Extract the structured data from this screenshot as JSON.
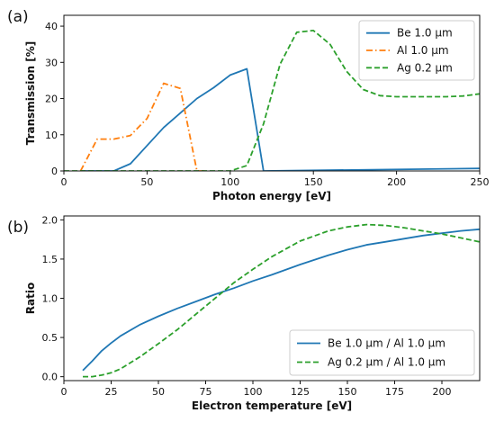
{
  "chart_data": [
    {
      "type": "line",
      "panel_label": "(a)",
      "xlabel": "Photon energy [eV]",
      "ylabel": "Transmission [%]",
      "xlim": [
        0,
        250
      ],
      "ylim": [
        0,
        43
      ],
      "xticks": [
        0,
        50,
        100,
        150,
        200,
        250
      ],
      "yticks": [
        0,
        10,
        20,
        30,
        40
      ],
      "grid": false,
      "legend_position": "top-right",
      "series": [
        {
          "name": "Be 1.0 μm",
          "color": "#1f77b4",
          "style": "solid",
          "x": [
            10,
            30,
            40,
            50,
            60,
            70,
            80,
            90,
            100,
            110,
            120,
            250
          ],
          "y": [
            0,
            0,
            2,
            7,
            12,
            16,
            20,
            23,
            26.5,
            28.2,
            0,
            0.7
          ]
        },
        {
          "name": "Al 1.0 μm",
          "color": "#ff7f0e",
          "style": "dashdot",
          "x": [
            10,
            20,
            30,
            40,
            50,
            60,
            70,
            80,
            85
          ],
          "y": [
            0,
            8.8,
            8.8,
            9.8,
            14.5,
            24.2,
            22.8,
            0,
            0
          ]
        },
        {
          "name": "Ag 0.2 μm",
          "color": "#2ca02c",
          "style": "dashed",
          "x": [
            0,
            100,
            110,
            120,
            130,
            140,
            150,
            160,
            170,
            180,
            190,
            200,
            210,
            220,
            230,
            240,
            250
          ],
          "y": [
            0,
            0,
            1.5,
            13,
            29.5,
            38.3,
            38.8,
            35,
            27.5,
            22.5,
            20.8,
            20.5,
            20.5,
            20.5,
            20.5,
            20.7,
            21.3
          ]
        }
      ]
    },
    {
      "type": "line",
      "panel_label": "(b)",
      "xlabel": "Electron temperature [eV]",
      "ylabel": "Ratio",
      "xlim": [
        0,
        220
      ],
      "ylim": [
        -0.05,
        2.05
      ],
      "xticks": [
        0,
        25,
        50,
        75,
        100,
        125,
        150,
        175,
        200
      ],
      "yticks": [
        0.0,
        0.5,
        1.0,
        1.5,
        2.0
      ],
      "grid": false,
      "legend_position": "bottom-right",
      "series": [
        {
          "name": "Be 1.0 μm / Al 1.0 μm",
          "color": "#1f77b4",
          "style": "solid",
          "x": [
            10,
            15,
            20,
            25,
            30,
            40,
            50,
            60,
            70,
            80,
            90,
            100,
            110,
            125,
            140,
            150,
            160,
            170,
            180,
            190,
            200,
            210,
            220
          ],
          "y": [
            0.08,
            0.2,
            0.33,
            0.43,
            0.52,
            0.66,
            0.77,
            0.87,
            0.96,
            1.05,
            1.13,
            1.22,
            1.3,
            1.43,
            1.55,
            1.62,
            1.68,
            1.72,
            1.76,
            1.8,
            1.83,
            1.86,
            1.88
          ]
        },
        {
          "name": "Ag 0.2 μm / Al 1.0 μm",
          "color": "#2ca02c",
          "style": "dashed",
          "x": [
            10,
            15,
            20,
            25,
            30,
            40,
            50,
            60,
            70,
            80,
            90,
            100,
            110,
            125,
            140,
            150,
            160,
            170,
            180,
            190,
            200,
            210,
            220
          ],
          "y": [
            0.0,
            0.0,
            0.02,
            0.05,
            0.1,
            0.25,
            0.42,
            0.6,
            0.8,
            1.0,
            1.2,
            1.37,
            1.53,
            1.73,
            1.86,
            1.91,
            1.94,
            1.93,
            1.9,
            1.86,
            1.82,
            1.77,
            1.72
          ]
        }
      ]
    }
  ]
}
